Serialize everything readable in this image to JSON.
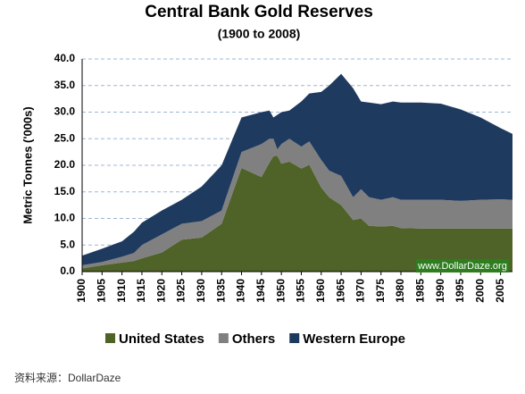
{
  "chart_data": {
    "type": "stacked-area",
    "title": "Central Bank Gold Reserves",
    "subtitle": "(1900 to 2008)",
    "y_label": "Metric Tonnes ('000s)",
    "watermark": "www.DollarDaze.org",
    "source": "资料来源：DollarDaze",
    "x": [
      1900,
      1905,
      1910,
      1913,
      1915,
      1920,
      1925,
      1930,
      1935,
      1940,
      1945,
      1947,
      1948,
      1949,
      1950,
      1952,
      1955,
      1957,
      1960,
      1962,
      1965,
      1968,
      1970,
      1972,
      1975,
      1978,
      1980,
      1985,
      1990,
      1995,
      2000,
      2005,
      2008
    ],
    "series": [
      {
        "name": "United States",
        "color": "#4f6228",
        "values": [
          0.6,
          1.2,
          1.7,
          2.0,
          2.5,
          3.6,
          6.0,
          6.4,
          9.0,
          19.5,
          17.8,
          20.5,
          21.7,
          21.8,
          20.3,
          20.7,
          19.4,
          20.1,
          15.8,
          14.0,
          12.5,
          9.7,
          10.0,
          8.6,
          8.5,
          8.6,
          8.2,
          8.1,
          8.1,
          8.1,
          8.1,
          8.1,
          8.1
        ]
      },
      {
        "name": "Others",
        "color": "#808080",
        "values": [
          0.6,
          0.6,
          1.1,
          1.5,
          2.5,
          3.4,
          3.0,
          3.1,
          2.5,
          3.0,
          6.2,
          4.5,
          3.3,
          1.2,
          3.7,
          4.3,
          4.1,
          4.4,
          5.2,
          5.0,
          5.5,
          4.3,
          5.5,
          5.4,
          5.0,
          5.4,
          5.3,
          5.4,
          5.4,
          5.2,
          5.4,
          5.5,
          5.4
        ]
      },
      {
        "name": "Western Europe",
        "color": "#1f3a5f",
        "values": [
          1.8,
          2.5,
          2.9,
          4.0,
          4.2,
          4.5,
          4.5,
          6.5,
          8.5,
          6.5,
          6.0,
          5.3,
          4.0,
          6.5,
          6.0,
          5.3,
          8.5,
          9.0,
          12.8,
          16.0,
          19.2,
          20.5,
          16.5,
          17.8,
          18.0,
          18.0,
          18.3,
          18.3,
          18.1,
          17.2,
          15.5,
          13.4,
          12.4
        ]
      }
    ],
    "xlim": [
      1900,
      2008
    ],
    "xticks": [
      1900,
      1905,
      1910,
      1915,
      1920,
      1925,
      1930,
      1935,
      1940,
      1945,
      1950,
      1955,
      1960,
      1965,
      1970,
      1975,
      1980,
      1985,
      1990,
      1995,
      2000,
      2005
    ],
    "ylim": [
      0,
      40
    ],
    "yticks": [
      {
        "value": 0,
        "label": "0.0"
      },
      {
        "value": 5,
        "label": "5.0"
      },
      {
        "value": 10,
        "label": "10.0"
      },
      {
        "value": 15,
        "label": "15.0"
      },
      {
        "value": 20,
        "label": "20.0"
      },
      {
        "value": 25,
        "label": "25.0"
      },
      {
        "value": 30,
        "label": "30.0"
      },
      {
        "value": 35,
        "label": "35.0"
      },
      {
        "value": 40,
        "label": "40.0"
      }
    ],
    "grid": true,
    "legend": "bottom"
  }
}
